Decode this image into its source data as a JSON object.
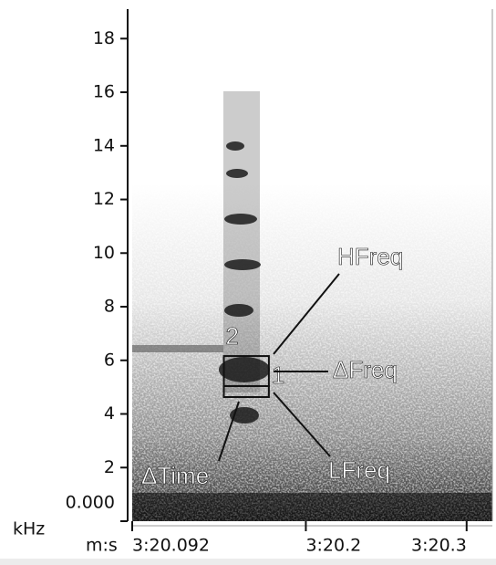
{
  "chart_data": {
    "type": "spectrogram",
    "y_label": "kHz",
    "x_label": "m:s",
    "ylim": [
      0,
      19.1
    ],
    "yticks": [
      {
        "value": 0,
        "label": "0.000"
      },
      2,
      4,
      6,
      8,
      10,
      12,
      14,
      16,
      18
    ],
    "xlim": [
      200.092,
      200.316
    ],
    "xticks": [
      {
        "value": 200.092,
        "label": "3:20.092"
      },
      {
        "value": 200.2,
        "label": "3:20.2"
      },
      {
        "value": 200.3,
        "label": "3:20.3"
      }
    ],
    "selections": [
      {
        "label": "2",
        "x": [
          200.149,
          200.177
        ],
        "y": [
          5.04,
          6.16
        ]
      },
      {
        "label": "1",
        "x": [
          200.149,
          200.177
        ],
        "y": [
          4.63,
          5.04
        ]
      }
    ],
    "annotations": [
      "HFreq",
      "ΔFreq",
      "LFreq",
      "ΔTime"
    ]
  }
}
